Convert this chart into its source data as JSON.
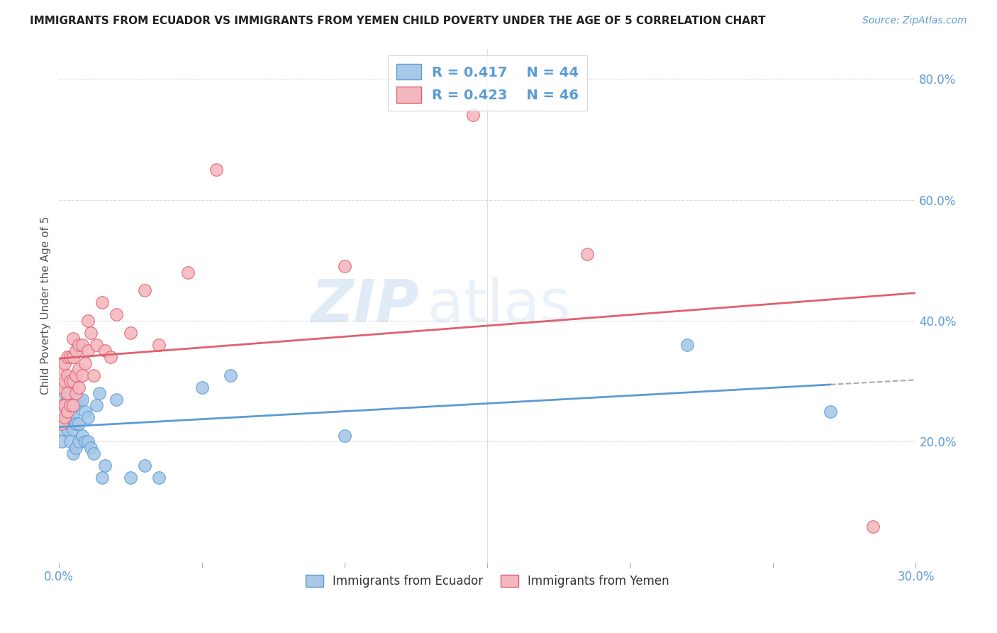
{
  "title": "IMMIGRANTS FROM ECUADOR VS IMMIGRANTS FROM YEMEN CHILD POVERTY UNDER THE AGE OF 5 CORRELATION CHART",
  "source": "Source: ZipAtlas.com",
  "ylabel": "Child Poverty Under the Age of 5",
  "xlim": [
    0.0,
    0.3
  ],
  "ylim": [
    0.0,
    0.85
  ],
  "yticks": [
    0.2,
    0.4,
    0.6,
    0.8
  ],
  "xtick_positions": [
    0.0,
    0.05,
    0.1,
    0.15,
    0.2,
    0.25,
    0.3
  ],
  "ecuador_color": "#a8c8e8",
  "ecuador_color_line": "#5b9bd5",
  "yemen_color": "#f4b8c0",
  "yemen_color_line": "#e06070",
  "ecuador_R": 0.417,
  "ecuador_N": 44,
  "yemen_R": 0.423,
  "yemen_N": 46,
  "ecuador_x": [
    0.001,
    0.001,
    0.002,
    0.002,
    0.002,
    0.003,
    0.003,
    0.003,
    0.003,
    0.004,
    0.004,
    0.004,
    0.004,
    0.005,
    0.005,
    0.005,
    0.005,
    0.006,
    0.006,
    0.006,
    0.007,
    0.007,
    0.007,
    0.008,
    0.008,
    0.009,
    0.009,
    0.01,
    0.01,
    0.011,
    0.012,
    0.013,
    0.014,
    0.015,
    0.016,
    0.02,
    0.025,
    0.03,
    0.035,
    0.05,
    0.06,
    0.1,
    0.22,
    0.27
  ],
  "ecuador_y": [
    0.22,
    0.2,
    0.24,
    0.26,
    0.28,
    0.22,
    0.24,
    0.26,
    0.27,
    0.2,
    0.23,
    0.25,
    0.27,
    0.18,
    0.22,
    0.24,
    0.26,
    0.19,
    0.23,
    0.26,
    0.2,
    0.23,
    0.27,
    0.21,
    0.27,
    0.2,
    0.25,
    0.2,
    0.24,
    0.19,
    0.18,
    0.26,
    0.28,
    0.14,
    0.16,
    0.27,
    0.14,
    0.16,
    0.14,
    0.29,
    0.31,
    0.21,
    0.36,
    0.25
  ],
  "yemen_x": [
    0.001,
    0.001,
    0.001,
    0.001,
    0.002,
    0.002,
    0.002,
    0.002,
    0.003,
    0.003,
    0.003,
    0.003,
    0.004,
    0.004,
    0.004,
    0.005,
    0.005,
    0.005,
    0.005,
    0.006,
    0.006,
    0.006,
    0.007,
    0.007,
    0.007,
    0.008,
    0.008,
    0.009,
    0.01,
    0.01,
    0.011,
    0.012,
    0.013,
    0.015,
    0.016,
    0.018,
    0.02,
    0.025,
    0.03,
    0.035,
    0.045,
    0.055,
    0.1,
    0.145,
    0.185,
    0.285
  ],
  "yemen_y": [
    0.23,
    0.26,
    0.29,
    0.32,
    0.24,
    0.26,
    0.3,
    0.33,
    0.25,
    0.28,
    0.31,
    0.34,
    0.26,
    0.3,
    0.34,
    0.26,
    0.3,
    0.34,
    0.37,
    0.28,
    0.31,
    0.35,
    0.29,
    0.32,
    0.36,
    0.31,
    0.36,
    0.33,
    0.35,
    0.4,
    0.38,
    0.31,
    0.36,
    0.43,
    0.35,
    0.34,
    0.41,
    0.38,
    0.45,
    0.36,
    0.48,
    0.65,
    0.49,
    0.74,
    0.51,
    0.06
  ],
  "watermark_zip": "ZIP",
  "watermark_atlas": "atlas",
  "background_color": "#ffffff",
  "grid_color": "#dddddd",
  "legend_edge_color": "#cccccc"
}
